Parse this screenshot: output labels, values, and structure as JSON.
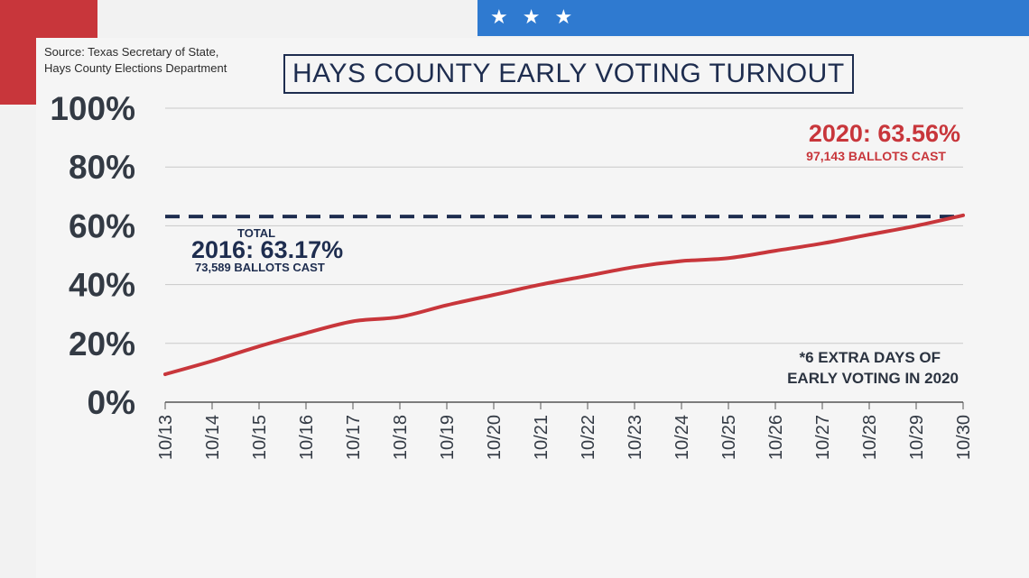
{
  "header": {
    "source_line1": "Source: Texas Secretary of State,",
    "source_line2": "Hays County Elections Department",
    "title": "HAYS COUNTY EARLY VOTING TURNOUT",
    "stars": [
      "★",
      "★",
      "★"
    ]
  },
  "colors": {
    "red": "#c8363b",
    "navy": "#1e2d4f",
    "blue": "#2f7ad0"
  },
  "chart_data": {
    "type": "line",
    "title": "HAYS COUNTY EARLY VOTING TURNOUT",
    "ylim": [
      0,
      100
    ],
    "yticks": [
      "0%",
      "20%",
      "40%",
      "60%",
      "80%",
      "100%"
    ],
    "ytick_values": [
      0,
      20,
      40,
      60,
      80,
      100
    ],
    "x": [
      "10/13",
      "10/14",
      "10/15",
      "10/16",
      "10/17",
      "10/18",
      "10/19",
      "10/20",
      "10/21",
      "10/22",
      "10/23",
      "10/24",
      "10/25",
      "10/26",
      "10/27",
      "10/28",
      "10/29",
      "10/30"
    ],
    "grid": true,
    "series": [
      {
        "name": "2020",
        "values": [
          9.5,
          14,
          19,
          23.5,
          27.5,
          29,
          33,
          36.5,
          40,
          43,
          46,
          48,
          49,
          51.5,
          54,
          57,
          60,
          63.56
        ]
      }
    ],
    "reference_line": {
      "value": 63.17,
      "style": "dashed"
    },
    "annotations": {
      "label_2020": "2020: 63.56%",
      "ballots_2020": "97,143 BALLOTS CAST",
      "total_2016": "TOTAL",
      "label_2016": "2016: 63.17%",
      "ballots_2016": "73,589 BALLOTS CAST",
      "note_line1": "*6 EXTRA DAYS OF",
      "note_line2": "EARLY VOTING IN 2020"
    }
  }
}
